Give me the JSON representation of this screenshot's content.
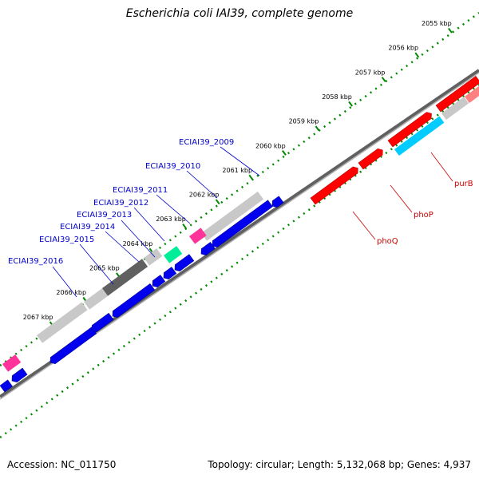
{
  "title": "Escherichia coli IAI39, complete genome",
  "footer": {
    "accession": "Accession: NC_011750",
    "summary": "Topology: circular; Length: 5,132,068 bp; Genes: 4,937"
  },
  "colors": {
    "forward_gene": "#ff0000",
    "reverse_gene": "#0000ee",
    "tick": "#008800",
    "backbone": "#808080",
    "label_blue": "#0000cc",
    "label_red": "#cc0000",
    "pink_feature": "#ff3399",
    "green_feature": "#00ee99",
    "cyan_feature": "#00ccff"
  },
  "scale_ticks": [
    {
      "label": "2055 kbp",
      "kbp": 2055
    },
    {
      "label": "2056 kbp",
      "kbp": 2056
    },
    {
      "label": "2057 kbp",
      "kbp": 2057
    },
    {
      "label": "2058 kbp",
      "kbp": 2058
    },
    {
      "label": "2059 kbp",
      "kbp": 2059
    },
    {
      "label": "2060 kbp",
      "kbp": 2060
    },
    {
      "label": "2061 kbp",
      "kbp": 2061
    },
    {
      "label": "2062 kbp",
      "kbp": 2062
    },
    {
      "label": "2063 kbp",
      "kbp": 2063
    },
    {
      "label": "2064 kbp",
      "kbp": 2064
    },
    {
      "label": "2065 kbp",
      "kbp": 2065
    },
    {
      "label": "2066 kbp",
      "kbp": 2066
    },
    {
      "label": "2067 kbp",
      "kbp": 2067
    }
  ],
  "gene_labels_blue": [
    {
      "name": "ECIAI39_2009"
    },
    {
      "name": "ECIAI39_2010"
    },
    {
      "name": "ECIAI39_2011"
    },
    {
      "name": "ECIAI39_2012"
    },
    {
      "name": "ECIAI39_2013"
    },
    {
      "name": "ECIAI39_2014"
    },
    {
      "name": "ECIAI39_2015"
    },
    {
      "name": "ECIAI39_2016"
    }
  ],
  "gene_labels_red": [
    {
      "name": "purB"
    },
    {
      "name": "phoP"
    },
    {
      "name": "phoQ"
    }
  ]
}
